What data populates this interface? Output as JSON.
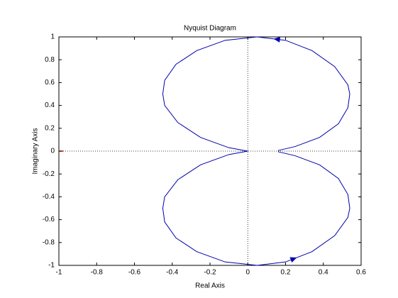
{
  "chart_data": {
    "type": "line",
    "title": "Nyquist Diagram",
    "x_label": "Real Axis",
    "y_label": "Imaginary Axis",
    "x": [
      0,
      -0.1,
      -0.25,
      -0.37,
      -0.44,
      -0.45,
      -0.44,
      -0.38,
      -0.27,
      -0.12,
      0.05,
      0.2,
      0.34,
      0.46,
      0.53,
      0.54,
      0.53,
      0.48,
      0.38,
      0.25,
      0.16
    ],
    "series": [
      {
        "color": "#0000aa",
        "values": [
          0,
          0.03,
          0.12,
          0.25,
          0.4,
          0.5,
          0.62,
          0.76,
          0.88,
          0.97,
          1.0,
          0.97,
          0.88,
          0.74,
          0.58,
          0.5,
          0.38,
          0.24,
          0.12,
          0.04,
          0.005
        ]
      },
      {
        "color": "#0000aa",
        "values": [
          0,
          -0.03,
          -0.12,
          -0.25,
          -0.4,
          -0.5,
          -0.62,
          -0.76,
          -0.88,
          -0.97,
          -1.0,
          -0.97,
          -0.88,
          -0.74,
          -0.58,
          -0.5,
          -0.38,
          -0.24,
          -0.12,
          -0.04,
          -0.005
        ]
      }
    ],
    "xlim": [
      -1,
      0.6
    ],
    "xticks": [
      -1,
      -0.8,
      -0.6,
      -0.4,
      -0.2,
      0,
      0.2,
      0.4,
      0.6
    ],
    "ylim": [
      -1,
      1
    ],
    "yticks": [
      -1,
      -0.8,
      -0.6,
      -0.4,
      -0.2,
      0,
      0.2,
      0.4,
      0.6,
      0.8,
      1
    ],
    "grid": false
  }
}
